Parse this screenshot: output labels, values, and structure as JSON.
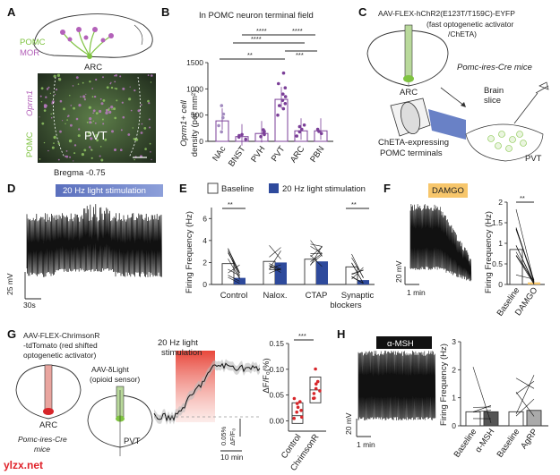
{
  "colors": {
    "pomc": "#7fc341",
    "mor": "#b361b9",
    "chr2": "#2e4a9c",
    "chrimson": "#d7262a",
    "gray": "#9e9e9e",
    "purple": "#7b3f98"
  },
  "watermark": "ylzx.net",
  "panels": {
    "A": {
      "letter": "A",
      "pomc": "POMC",
      "mor": "MOR",
      "arc": "ARC",
      "oprm1": "Oprm1",
      "pomc_side": "POMC",
      "pvt": "PVT",
      "bregma": "Bregma -0.75"
    },
    "B": {
      "letter": "B",
      "title": "In POMC neuron terminal field",
      "ylabel1": "Oprm1+ cell",
      "ylabel2": "density (per mm²)",
      "sig": [
        "****",
        "****",
        "****",
        "**",
        "***"
      ]
    },
    "C": {
      "letter": "C",
      "virus1": "AAV-FLEX-hChR2(E123T/T159C)-EYFP",
      "virus2": "(fast optogenetic activator",
      "virus3": "/ChETA)",
      "mice": "Pomc-ires-Cre mice",
      "arc": "ARC",
      "brain": "Brain",
      "slice": "slice",
      "cheta1": "ChETA-expressing",
      "cheta2": "POMC terminals",
      "pvt": "PVT"
    },
    "D": {
      "letter": "D",
      "stim": "20 Hz light stimulation",
      "scale_mv": "25 mV",
      "scale_s": "30s"
    },
    "E": {
      "letter": "E",
      "legend_base": "Baseline",
      "legend_stim": "20 Hz light stimulation",
      "ylabel": "Firing Frequency (Hz)",
      "groups": [
        "Control",
        "Nalox.",
        "CTAP",
        "Synaptic"
      ],
      "group_sub": "blockers",
      "sig": [
        "**",
        "**"
      ]
    },
    "F": {
      "letter": "F",
      "drug": "DAMGO",
      "scale_mv": "20 mV",
      "scale_t": "1 min",
      "ylabel": "Firing Frequency (Hz)",
      "sig": "**"
    },
    "G": {
      "letter": "G",
      "virus1": "AAV-FLEX-ChrimsonR",
      "virus2": "-tdTomato (red shifted",
      "virus3": "optogenetic activator)",
      "sensor1": "AAV-δLight",
      "sensor2": "(opioid sensor)",
      "arc": "ARC",
      "pvt": "PVT",
      "mice1": "Pomc-ires-Cre",
      "mice2": "mice",
      "stim1": "20 Hz light",
      "stim2": "stimulation",
      "scale_y1": "0.05%",
      "scale_y2": "ΔF/F₀",
      "scale_t": "10 min",
      "ylabel": "ΔF/F₀(%)",
      "sig": "***"
    },
    "H": {
      "letter": "H",
      "drug": "α-MSH",
      "scale_mv": "20 mV",
      "scale_t": "1 min",
      "ylabel": "Firing Frequency (Hz)"
    }
  },
  "chart_data": [
    {
      "panel": "B",
      "type": "bar",
      "categories": [
        "NAc",
        "BNST",
        "PVH",
        "PVT",
        "ARC",
        "PBN"
      ],
      "values": [
        390,
        90,
        150,
        800,
        200,
        200
      ],
      "ylim": [
        0,
        1500
      ],
      "yticks": [
        0,
        500,
        1000,
        1500
      ],
      "points": [
        [
          180,
          300,
          450,
          520,
          680
        ],
        [
          40,
          80,
          110,
          130
        ],
        [
          90,
          130,
          160,
          190,
          220
        ],
        [
          500,
          620,
          680,
          720,
          780,
          850,
          900,
          1020,
          1100,
          1300
        ],
        [
          100,
          180,
          230,
          280,
          310
        ],
        [
          150,
          190,
          230
        ]
      ]
    },
    {
      "panel": "E",
      "type": "bar",
      "categories": [
        "Control",
        "Nalox.",
        "CTAP",
        "Synaptic blockers"
      ],
      "series": [
        {
          "name": "Baseline",
          "values": [
            1.9,
            2.1,
            2.3,
            1.6
          ]
        },
        {
          "name": "20 Hz light stimulation",
          "values": [
            0.6,
            2.0,
            2.1,
            0.4
          ]
        }
      ],
      "ylim": [
        0,
        7
      ],
      "yticks": [
        0,
        2,
        4,
        6
      ]
    },
    {
      "panel": "F",
      "type": "bar",
      "categories": [
        "Baseline",
        "DAMGO"
      ],
      "values": [
        0.85,
        0.05
      ],
      "ylim": [
        0,
        2
      ],
      "yticks": [
        0,
        0.5,
        1,
        1.5,
        2
      ]
    },
    {
      "panel": "G",
      "type": "bar",
      "categories": [
        "Control",
        "ChrimsonR"
      ],
      "values": [
        0.01,
        0.06
      ],
      "ylim": [
        -0.02,
        0.15
      ],
      "yticks": [
        0,
        0.05,
        0.1,
        0.15
      ],
      "tick_labels": [
        "0.00",
        "0.05",
        "0.10",
        "0.15"
      ]
    },
    {
      "panel": "H",
      "type": "bar",
      "categories": [
        "Baseline",
        "α-MSH",
        "Baseline",
        "AgRP"
      ],
      "values": [
        0.5,
        0.5,
        0.5,
        0.55
      ],
      "ylim": [
        0,
        3
      ],
      "yticks": [
        0,
        1,
        2,
        3
      ]
    }
  ]
}
